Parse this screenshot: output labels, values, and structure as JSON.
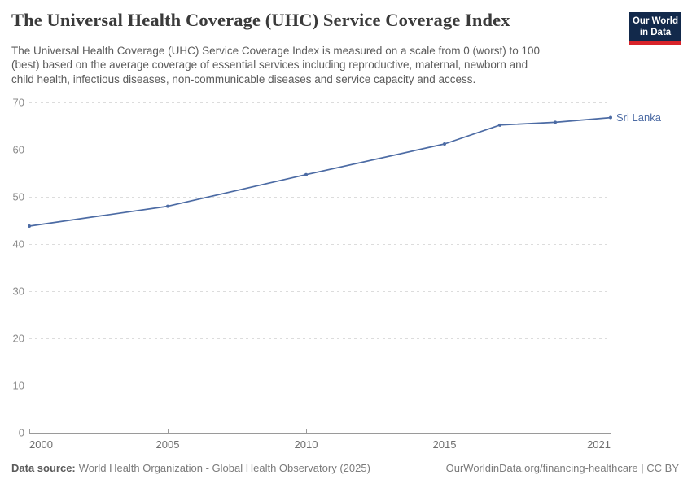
{
  "header": {
    "title": "The Universal Health Coverage (UHC) Service Coverage Index",
    "subtitle": "The Universal Health Coverage (UHC) Service Coverage Index is measured on a scale from 0 (worst) to 100 (best) based on the average coverage of essential services including reproductive, maternal, newborn and child health, infectious diseases, non-communicable diseases and service capacity and access.",
    "logo": {
      "line1": "Our World",
      "line2": "in Data",
      "bg_color": "#12294b",
      "accent_color": "#d8232a"
    }
  },
  "chart_data": {
    "type": "line",
    "title": "The Universal Health Coverage (UHC) Service Coverage Index",
    "x": [
      2000,
      2005,
      2010,
      2015,
      2017,
      2019,
      2021
    ],
    "series": [
      {
        "name": "Sri Lanka",
        "color": "#4c6ba4",
        "values": [
          43.8,
          48.0,
          54.7,
          61.2,
          65.2,
          65.8,
          66.8
        ]
      }
    ],
    "xlim": [
      2000,
      2021
    ],
    "ylim": [
      0,
      70
    ],
    "xticks": [
      2000,
      2005,
      2010,
      2015,
      2021
    ],
    "yticks": [
      0,
      10,
      20,
      30,
      40,
      50,
      60,
      70
    ],
    "grid": "horizontal-dashed",
    "legend_position": "end-of-line-label",
    "xlabel": "",
    "ylabel": ""
  },
  "footer": {
    "datasource_label": "Data source:",
    "datasource_value": "World Health Organization - Global Health Observatory (2025)",
    "credit": "OurWorldinData.org/financing-healthcare | CC BY"
  }
}
